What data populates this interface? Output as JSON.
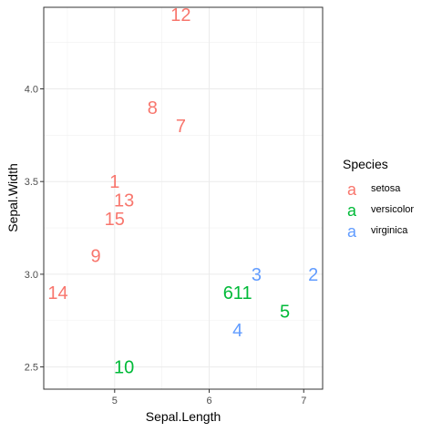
{
  "chart_data": {
    "type": "scatter",
    "xlabel": "Sepal.Length",
    "ylabel": "Sepal.Width",
    "xlim": [
      4.25,
      7.2
    ],
    "ylim": [
      2.38,
      4.44
    ],
    "x_ticks": [
      5,
      6,
      7
    ],
    "y_ticks": [
      2.5,
      3.0,
      3.5,
      4.0
    ],
    "x_tick_labels": [
      "5",
      "6",
      "7"
    ],
    "y_tick_labels": [
      "2.5",
      "3.0",
      "3.5",
      "4.0"
    ],
    "grid": true,
    "legend_position": "right",
    "legend_title": "Species",
    "legend_key_glyph": "a",
    "series": [
      {
        "name": "setosa",
        "color": "#F8766D",
        "points": [
          {
            "label": "12",
            "x": 5.7,
            "y": 4.4
          },
          {
            "label": "8",
            "x": 5.4,
            "y": 3.9
          },
          {
            "label": "7",
            "x": 5.7,
            "y": 3.8
          },
          {
            "label": "1",
            "x": 5.0,
            "y": 3.5
          },
          {
            "label": "13",
            "x": 5.1,
            "y": 3.4
          },
          {
            "label": "15",
            "x": 5.0,
            "y": 3.3
          },
          {
            "label": "9",
            "x": 4.8,
            "y": 3.1
          },
          {
            "label": "14",
            "x": 4.4,
            "y": 2.9
          }
        ]
      },
      {
        "name": "versicolor",
        "color": "#00BA38",
        "points": [
          {
            "label": "611",
            "x": 6.3,
            "y": 2.9
          },
          {
            "label": "5",
            "x": 6.8,
            "y": 2.8
          },
          {
            "label": "10",
            "x": 5.1,
            "y": 2.5
          }
        ]
      },
      {
        "name": "virginica",
        "color": "#619CFF",
        "points": [
          {
            "label": "3",
            "x": 6.5,
            "y": 3.0
          },
          {
            "label": "2",
            "x": 7.1,
            "y": 3.0
          },
          {
            "label": "4",
            "x": 6.3,
            "y": 2.7
          }
        ]
      }
    ]
  }
}
